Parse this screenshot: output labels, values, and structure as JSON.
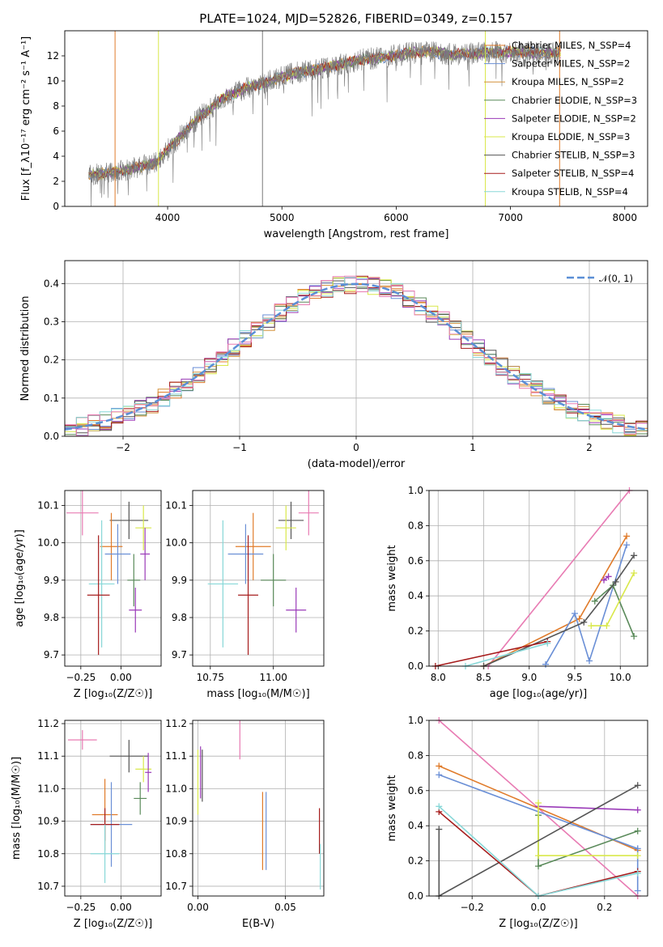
{
  "title": "PLATE=1024, MJD=52826, FIBERID=0349, z=0.157",
  "colors": {
    "Chabrier MILES": "#e07b2a",
    "Salpeter MILES": "#6a8fd6",
    "Kroupa MILES": "#d4903a",
    "Chabrier ELODIE": "#5a8a5a",
    "Salpeter ELODIE": "#9a3ab8",
    "Kroupa ELODIE": "#d9e84a",
    "Chabrier STELIB": "#555555",
    "Salpeter STELIB": "#a61c1c",
    "Kroupa STELIB": "#88d8d8",
    "pink": "#e87bb3",
    "gauss": "#5b8fd6"
  },
  "chart_data": [
    {
      "id": "spectrum",
      "type": "line",
      "xlabel": "wavelength [Angstrom, rest frame]",
      "ylabel": "Flux [f_λ10⁻¹⁷ erg cm⁻² s⁻¹ A⁻¹]",
      "xlim": [
        3100,
        8200
      ],
      "ylim": [
        0,
        14
      ],
      "xticks": [
        4000,
        5000,
        6000,
        7000,
        8000
      ],
      "yticks": [
        0,
        2,
        4,
        6,
        8,
        10,
        12
      ],
      "legend_position": "upper right",
      "series": [
        {
          "name": "Chabrier MILES, N_SSP=4"
        },
        {
          "name": "Salpeter MILES, N_SSP=2"
        },
        {
          "name": "Kroupa MILES, N_SSP=2"
        },
        {
          "name": "Chabrier ELODIE, N_SSP=3"
        },
        {
          "name": "Salpeter ELODIE, N_SSP=2"
        },
        {
          "name": "Kroupa ELODIE, N_SSP=3"
        },
        {
          "name": "Chabrier STELIB, N_SSP=3"
        },
        {
          "name": "Salpeter STELIB, N_SSP=4"
        },
        {
          "name": "Kroupa STELIB, N_SSP=4"
        }
      ],
      "continuum": {
        "x": [
          3300,
          3600,
          3900,
          4100,
          4300,
          4500,
          4700,
          4900,
          5100,
          5300,
          5500,
          5700,
          5900,
          6100,
          6300,
          6500,
          6700,
          6900,
          7100,
          7300,
          7450
        ],
        "y": [
          2.5,
          2.8,
          3.5,
          5.5,
          7.3,
          8.7,
          9.5,
          10.0,
          10.6,
          10.9,
          11.3,
          11.7,
          11.9,
          12.2,
          12.3,
          12.1,
          12.2,
          12.3,
          12.3,
          12.2,
          12.3
        ]
      }
    },
    {
      "id": "residuals",
      "type": "line",
      "xlabel": "(data-model)/error",
      "ylabel": "Normed distribution",
      "xlim": [
        -2.5,
        2.5
      ],
      "ylim": [
        0,
        0.46
      ],
      "xticks": [
        -2,
        -1,
        0,
        1,
        2
      ],
      "xtick_labels": [
        "−2",
        "−1",
        "0",
        "1",
        "2"
      ],
      "yticks": [
        0.0,
        0.1,
        0.2,
        0.3,
        0.4
      ],
      "gaussian_label": "𝒩(0, 1)",
      "legend_position": "upper right"
    },
    {
      "id": "z_age",
      "type": "scatter",
      "xlabel": "Z [log₁₀(Z/Z☉)]",
      "ylabel": "age  [log₁₀(age/yr)]",
      "xlim": [
        -0.35,
        0.25
      ],
      "ylim": [
        9.67,
        10.14
      ],
      "xticks": [
        -0.25,
        0.0
      ],
      "xtick_labels": [
        "−0.25",
        "0.00"
      ],
      "yticks": [
        9.7,
        9.8,
        9.9,
        10.0,
        10.1
      ],
      "points": [
        {
          "x": -0.24,
          "y": 10.08,
          "xerr": 0.1,
          "yerr": 0.06,
          "color": "pink"
        },
        {
          "x": 0.05,
          "y": 10.06,
          "xerr": 0.12,
          "yerr": 0.05,
          "color": "Chabrier STELIB"
        },
        {
          "x": 0.14,
          "y": 10.04,
          "xerr": 0.05,
          "yerr": 0.06,
          "color": "Kroupa ELODIE"
        },
        {
          "x": -0.06,
          "y": 9.99,
          "xerr": 0.07,
          "yerr": 0.09,
          "color": "Chabrier MILES"
        },
        {
          "x": -0.02,
          "y": 9.97,
          "xerr": 0.08,
          "yerr": 0.08,
          "color": "Salpeter MILES"
        },
        {
          "x": 0.15,
          "y": 9.97,
          "xerr": 0.03,
          "yerr": 0.07,
          "color": "Salpeter ELODIE"
        },
        {
          "x": 0.08,
          "y": 9.9,
          "xerr": 0.04,
          "yerr": 0.07,
          "color": "Chabrier ELODIE"
        },
        {
          "x": -0.12,
          "y": 9.89,
          "xerr": 0.08,
          "yerr": 0.17,
          "color": "Kroupa STELIB"
        },
        {
          "x": -0.14,
          "y": 9.86,
          "xerr": 0.07,
          "yerr": 0.16,
          "color": "Salpeter STELIB"
        },
        {
          "x": 0.09,
          "y": 9.82,
          "xerr": 0.04,
          "yerr": 0.06,
          "color": "Salpeter ELODIE"
        }
      ]
    },
    {
      "id": "mass_age",
      "type": "scatter",
      "xlabel": "mass [log₁₀(M/M☉)]",
      "ylabel": "",
      "xlim": [
        10.68,
        11.2
      ],
      "ylim": [
        9.67,
        10.14
      ],
      "xticks": [
        10.75,
        11.0
      ],
      "xtick_labels": [
        "10.75",
        "11.00"
      ],
      "yticks": [
        9.7,
        9.8,
        9.9,
        10.0,
        10.1
      ],
      "points": [
        {
          "x": 11.14,
          "y": 10.08,
          "xerr": 0.04,
          "yerr": 0.06,
          "color": "pink"
        },
        {
          "x": 11.07,
          "y": 10.06,
          "xerr": 0.05,
          "yerr": 0.05,
          "color": "Chabrier STELIB"
        },
        {
          "x": 11.05,
          "y": 10.04,
          "xerr": 0.04,
          "yerr": 0.06,
          "color": "Kroupa ELODIE"
        },
        {
          "x": 10.92,
          "y": 9.99,
          "xerr": 0.07,
          "yerr": 0.09,
          "color": "Chabrier MILES"
        },
        {
          "x": 10.89,
          "y": 9.97,
          "xerr": 0.07,
          "yerr": 0.08,
          "color": "Salpeter MILES"
        },
        {
          "x": 10.8,
          "y": 9.89,
          "xerr": 0.06,
          "yerr": 0.17,
          "color": "Kroupa STELIB"
        },
        {
          "x": 11.0,
          "y": 9.9,
          "xerr": 0.05,
          "yerr": 0.07,
          "color": "Chabrier ELODIE"
        },
        {
          "x": 10.9,
          "y": 9.86,
          "xerr": 0.04,
          "yerr": 0.16,
          "color": "Salpeter STELIB"
        },
        {
          "x": 11.09,
          "y": 9.82,
          "xerr": 0.04,
          "yerr": 0.06,
          "color": "Salpeter ELODIE"
        }
      ]
    },
    {
      "id": "age_weight",
      "type": "line",
      "xlabel": "age  [log₁₀(age/yr)]",
      "ylabel": "mass weight",
      "xlim": [
        7.9,
        10.3
      ],
      "ylim": [
        0.0,
        1.0
      ],
      "xticks": [
        8.0,
        8.5,
        9.0,
        9.5,
        10.0
      ],
      "xtick_labels": [
        "8.0",
        "8.5",
        "9.0",
        "9.5",
        "10.0"
      ],
      "yticks": [
        0.0,
        0.2,
        0.4,
        0.6,
        0.8,
        1.0
      ],
      "series": [
        {
          "color": "pink",
          "x": [
            8.55,
            10.1
          ],
          "y": [
            0.0,
            1.0
          ]
        },
        {
          "color": "Chabrier MILES",
          "x": [
            8.5,
            9.55,
            10.07
          ],
          "y": [
            0.0,
            0.27,
            0.74
          ]
        },
        {
          "color": "Salpeter MILES",
          "x": [
            9.18,
            9.5,
            9.66,
            10.07
          ],
          "y": [
            0.01,
            0.3,
            0.03,
            0.69
          ]
        },
        {
          "color": "Chabrier ELODIE",
          "x": [
            9.72,
            9.92,
            10.15
          ],
          "y": [
            0.37,
            0.46,
            0.17
          ]
        },
        {
          "color": "Salpeter ELODIE",
          "x": [
            9.82,
            9.87
          ],
          "y": [
            0.49,
            0.51
          ]
        },
        {
          "color": "Kroupa ELODIE",
          "x": [
            9.68,
            9.85,
            10.15
          ],
          "y": [
            0.23,
            0.23,
            0.53
          ]
        },
        {
          "color": "Chabrier STELIB",
          "x": [
            8.5,
            9.6,
            9.95,
            10.15
          ],
          "y": [
            0.0,
            0.25,
            0.48,
            0.63
          ]
        },
        {
          "color": "Salpeter STELIB",
          "x": [
            7.97,
            9.2
          ],
          "y": [
            0.0,
            0.14
          ]
        },
        {
          "color": "Kroupa STELIB",
          "x": [
            8.3,
            9.2
          ],
          "y": [
            0.0,
            0.13
          ]
        }
      ]
    },
    {
      "id": "z_mass",
      "type": "scatter",
      "xlabel": "Z [log₁₀(Z/Z☉)]",
      "ylabel": "mass [log₁₀(M/M☉)]",
      "xlim": [
        -0.35,
        0.25
      ],
      "ylim": [
        10.67,
        11.21
      ],
      "xticks": [
        -0.25,
        0.0
      ],
      "xtick_labels": [
        "−0.25",
        "0.00"
      ],
      "yticks": [
        10.7,
        10.8,
        10.9,
        11.0,
        11.1,
        11.2
      ],
      "points": [
        {
          "x": -0.24,
          "y": 11.15,
          "xerr": 0.09,
          "yerr": 0.03,
          "color": "pink"
        },
        {
          "x": 0.05,
          "y": 11.1,
          "xerr": 0.12,
          "yerr": 0.05,
          "color": "Chabrier STELIB"
        },
        {
          "x": 0.14,
          "y": 11.06,
          "xerr": 0.05,
          "yerr": 0.04,
          "color": "Kroupa ELODIE"
        },
        {
          "x": 0.17,
          "y": 11.05,
          "xerr": 0.02,
          "yerr": 0.06,
          "color": "Salpeter ELODIE"
        },
        {
          "x": 0.12,
          "y": 10.97,
          "xerr": 0.04,
          "yerr": 0.05,
          "color": "Chabrier ELODIE"
        },
        {
          "x": -0.1,
          "y": 10.92,
          "xerr": 0.08,
          "yerr": 0.11,
          "color": "Chabrier MILES"
        },
        {
          "x": -0.06,
          "y": 10.89,
          "xerr": 0.13,
          "yerr": 0.13,
          "color": "Salpeter MILES"
        },
        {
          "x": -0.1,
          "y": 10.89,
          "xerr": 0.09,
          "yerr": 0.05,
          "color": "Salpeter STELIB"
        },
        {
          "x": -0.1,
          "y": 10.8,
          "xerr": 0.09,
          "yerr": 0.09,
          "color": "Kroupa STELIB"
        }
      ]
    },
    {
      "id": "ebv_mass",
      "type": "scatter",
      "xlabel": "E(B-V)",
      "ylabel": "",
      "xlim": [
        -0.003,
        0.072
      ],
      "ylim": [
        10.67,
        11.21
      ],
      "xticks": [
        0.0,
        0.05
      ],
      "xtick_labels": [
        "0.00",
        "0.05"
      ],
      "yticks": [
        10.7,
        10.8,
        10.9,
        11.0,
        11.1,
        11.2
      ],
      "points": [
        {
          "x": 0.0,
          "y": 11.02,
          "yerr": 0.1,
          "color": "Kroupa ELODIE"
        },
        {
          "x": 0.0015,
          "y": 11.05,
          "yerr": 0.08,
          "color": "Salpeter ELODIE"
        },
        {
          "x": 0.0025,
          "y": 11.04,
          "yerr": 0.08,
          "color": "Chabrier STELIB"
        },
        {
          "x": 0.024,
          "y": 11.15,
          "yerr": 0.06,
          "color": "pink"
        },
        {
          "x": 0.037,
          "y": 10.87,
          "yerr": 0.12,
          "color": "Chabrier MILES"
        },
        {
          "x": 0.039,
          "y": 10.87,
          "yerr": 0.12,
          "color": "Salpeter MILES"
        },
        {
          "x": 0.0695,
          "y": 10.87,
          "yerr": 0.07,
          "color": "Salpeter STELIB"
        },
        {
          "x": 0.07,
          "y": 10.76,
          "yerr": 0.07,
          "color": "Kroupa STELIB"
        }
      ]
    },
    {
      "id": "z_weight",
      "type": "line",
      "xlabel": "Z [log₁₀(Z/Z☉)]",
      "ylabel": "mass weight",
      "xlim": [
        -0.33,
        0.33
      ],
      "ylim": [
        0.0,
        1.0
      ],
      "xticks": [
        -0.2,
        0.0,
        0.2
      ],
      "xtick_labels": [
        "−0.2",
        "0.0",
        "0.2"
      ],
      "yticks": [
        0.0,
        0.2,
        0.4,
        0.6,
        0.8,
        1.0
      ],
      "series": [
        {
          "color": "pink",
          "x": [
            -0.3,
            0.3
          ],
          "y": [
            1.0,
            0.0
          ]
        },
        {
          "color": "Chabrier MILES",
          "x": [
            -0.3,
            0.3
          ],
          "y": [
            0.74,
            0.26
          ]
        },
        {
          "color": "Salpeter MILES",
          "x": [
            -0.3,
            0.3,
            0.3
          ],
          "y": [
            0.69,
            0.27,
            0.03
          ]
        },
        {
          "color": "Chabrier ELODIE",
          "x": [
            0.0,
            0.0,
            0.3
          ],
          "y": [
            0.46,
            0.17,
            0.37
          ]
        },
        {
          "color": "Salpeter ELODIE",
          "x": [
            0.0,
            0.3
          ],
          "y": [
            0.51,
            0.49
          ]
        },
        {
          "color": "Kroupa ELODIE",
          "x": [
            0.0,
            0.0,
            0.3
          ],
          "y": [
            0.53,
            0.23,
            0.23
          ]
        },
        {
          "color": "Chabrier STELIB",
          "x": [
            -0.3,
            -0.3,
            0.3
          ],
          "y": [
            0.38,
            0.0,
            0.63
          ]
        },
        {
          "color": "Salpeter STELIB",
          "x": [
            -0.3,
            0.0,
            0.3
          ],
          "y": [
            0.48,
            0.0,
            0.14
          ]
        },
        {
          "color": "Kroupa STELIB",
          "x": [
            -0.3,
            0.0,
            0.3
          ],
          "y": [
            0.51,
            0.0,
            0.13
          ]
        }
      ]
    }
  ]
}
